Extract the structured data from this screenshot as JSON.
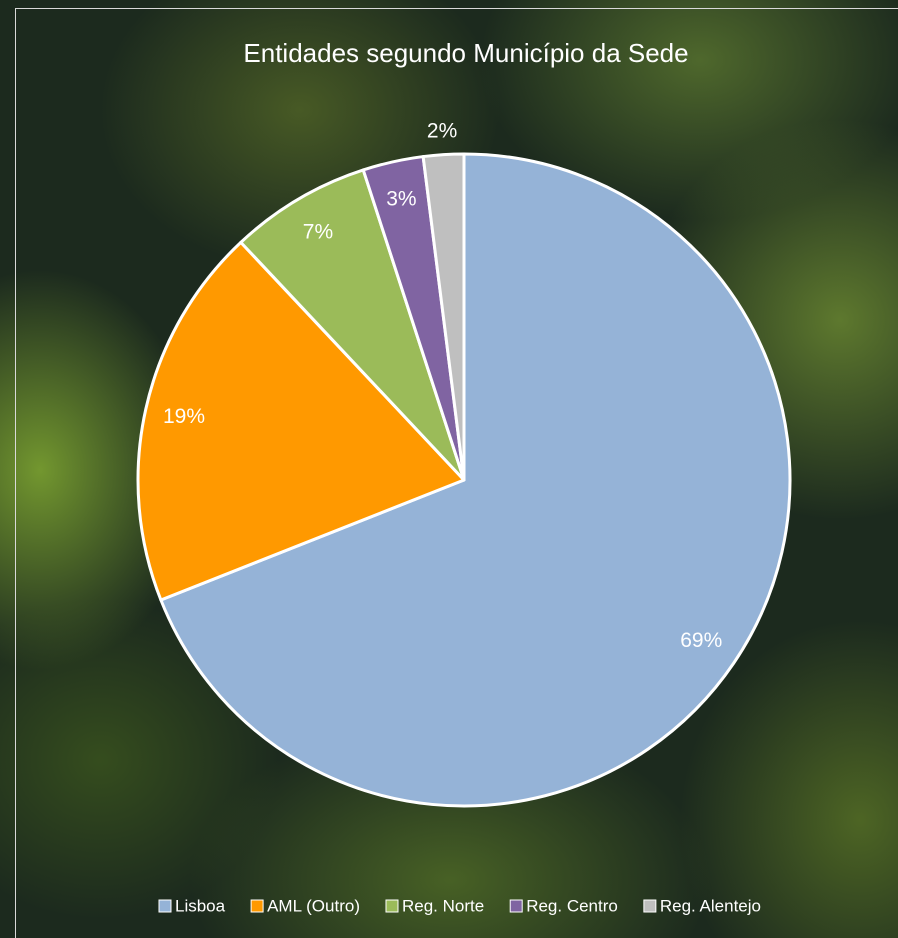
{
  "chart_data": {
    "type": "pie",
    "title": "Entidades segundo Município da Sede",
    "categories": [
      "Lisboa",
      "AML (Outro)",
      "Reg. Norte",
      "Reg. Centro",
      "Reg. Alentejo"
    ],
    "values": [
      69,
      19,
      7,
      3,
      2
    ],
    "value_labels": [
      "69%",
      "19%",
      "7%",
      "3%",
      "2%"
    ],
    "colors": [
      "#95b3d7",
      "#ff9900",
      "#9bbb59",
      "#8064a2",
      "#bfbfbf"
    ],
    "legend": "bottom"
  }
}
